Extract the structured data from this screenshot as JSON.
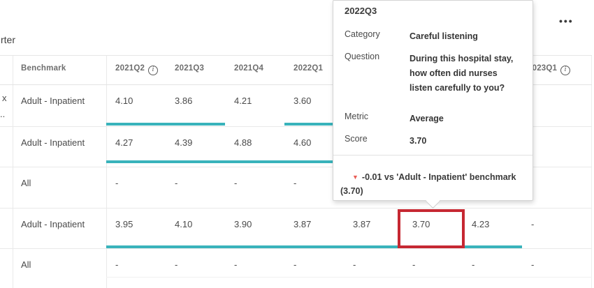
{
  "page": {
    "title_fragment": "rter"
  },
  "toolbar": {
    "more_label": "•••"
  },
  "table": {
    "stub_fragments": [
      "x",
      ".."
    ],
    "headers": [
      {
        "label": "Benchmark",
        "info": false
      },
      {
        "label": "2021Q2",
        "info": true
      },
      {
        "label": "2021Q3",
        "info": false
      },
      {
        "label": "2021Q4",
        "info": false
      },
      {
        "label": "2022Q1",
        "info": false
      },
      {
        "label": "",
        "info": false
      },
      {
        "label": "",
        "info": false
      },
      {
        "label": "",
        "info": false
      },
      {
        "label": "2023Q1",
        "info": true
      }
    ],
    "rows": [
      {
        "benchmark": "Adult - Inpatient",
        "values": [
          "4.10",
          "3.86",
          "4.21",
          "3.60",
          "",
          "",
          "",
          ""
        ],
        "underline_cols": [
          [
            0,
            1
          ],
          [
            3,
            3
          ]
        ]
      },
      {
        "benchmark": "Adult - Inpatient",
        "values": [
          "4.27",
          "4.39",
          "4.88",
          "4.60",
          "",
          "",
          "",
          ""
        ],
        "underline_cols": [
          [
            0,
            3
          ]
        ]
      },
      {
        "benchmark": "All",
        "values": [
          "-",
          "-",
          "-",
          "-",
          "",
          "",
          "",
          ""
        ],
        "underline_cols": []
      },
      {
        "benchmark": "Adult - Inpatient",
        "values": [
          "3.95",
          "4.10",
          "3.90",
          "3.87",
          "3.87",
          "3.70",
          "4.23",
          "-"
        ],
        "underline_cols": [
          [
            0,
            6
          ]
        ],
        "highlight_col": 5
      },
      {
        "benchmark": "All",
        "values": [
          "-",
          "-",
          "-",
          "-",
          "-",
          "-",
          "-",
          "-"
        ],
        "underline_cols": []
      }
    ]
  },
  "tooltip": {
    "title": "2022Q3",
    "fields": [
      {
        "label": "Category",
        "value": "Careful listening"
      },
      {
        "label": "Question",
        "value": "During this hospital stay, how often did nurses listen carefully to you?"
      },
      {
        "label": "Metric",
        "value": "Average"
      },
      {
        "label": "Score",
        "value": "3.70"
      }
    ],
    "delta_direction": "down",
    "delta_text": "-0.01 vs 'Adult - Inpatient' benchmark (3.70)"
  },
  "colors": {
    "teal": "#39b3bb",
    "highlight_red": "#c62832",
    "delta_red": "#e95d55"
  }
}
